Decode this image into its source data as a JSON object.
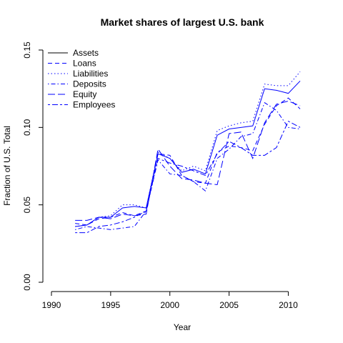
{
  "chart_data": {
    "type": "line",
    "title": "Market shares of largest U.S. bank",
    "xlabel": "Year",
    "ylabel": "Fraction of U.S. Total",
    "xlim": [
      1990,
      2011
    ],
    "ylim": [
      0.0,
      0.15
    ],
    "x_ticks": [
      "1990",
      "1995",
      "2000",
      "2005",
      "2010"
    ],
    "y_ticks": [
      "0.00",
      "0.05",
      "0.10",
      "0.15"
    ],
    "legend_position": "top-left",
    "grid": false,
    "color": "#0000ff",
    "x": [
      1992,
      1993,
      1994,
      1995,
      1996,
      1997,
      1998,
      1999,
      2000,
      2001,
      2002,
      2003,
      2004,
      2005,
      2006,
      2007,
      2008,
      2009,
      2010,
      2011
    ],
    "series": [
      {
        "name": "Assets",
        "dash": "solid",
        "values": [
          0.036,
          0.037,
          0.042,
          0.042,
          0.048,
          0.049,
          0.048,
          0.083,
          0.08,
          0.071,
          0.073,
          0.07,
          0.095,
          0.099,
          0.1,
          0.101,
          0.125,
          0.124,
          0.122,
          0.13
        ]
      },
      {
        "name": "Loans",
        "dash": "dashed",
        "values": [
          0.038,
          0.037,
          0.041,
          0.042,
          0.045,
          0.043,
          0.046,
          0.083,
          0.082,
          0.069,
          0.065,
          0.064,
          0.084,
          0.088,
          0.087,
          0.085,
          0.102,
          0.114,
          0.119,
          0.112
        ]
      },
      {
        "name": "Liabilities",
        "dash": "dotted",
        "values": [
          0.036,
          0.037,
          0.042,
          0.043,
          0.05,
          0.05,
          0.048,
          0.084,
          0.08,
          0.072,
          0.075,
          0.072,
          0.098,
          0.101,
          0.103,
          0.104,
          0.128,
          0.127,
          0.127,
          0.136
        ]
      },
      {
        "name": "Deposits",
        "dash": "dotdash",
        "values": [
          0.034,
          0.036,
          0.035,
          0.034,
          0.035,
          0.036,
          0.046,
          0.079,
          0.07,
          0.069,
          0.065,
          0.059,
          0.08,
          0.086,
          0.094,
          0.096,
          0.116,
          0.111,
          0.1,
          0.099
        ]
      },
      {
        "name": "Equity",
        "dash": "longdash",
        "values": [
          0.04,
          0.04,
          0.042,
          0.041,
          0.044,
          0.043,
          0.044,
          0.086,
          0.075,
          0.067,
          0.066,
          0.064,
          0.063,
          0.096,
          0.097,
          0.08,
          0.103,
          0.115,
          0.117,
          0.114
        ]
      },
      {
        "name": "Employees",
        "dash": "twodash",
        "values": [
          0.032,
          0.032,
          0.036,
          0.037,
          0.039,
          0.042,
          0.046,
          0.08,
          0.077,
          0.075,
          0.072,
          0.069,
          0.083,
          0.091,
          0.087,
          0.082,
          0.082,
          0.087,
          0.104,
          0.1
        ]
      }
    ]
  }
}
